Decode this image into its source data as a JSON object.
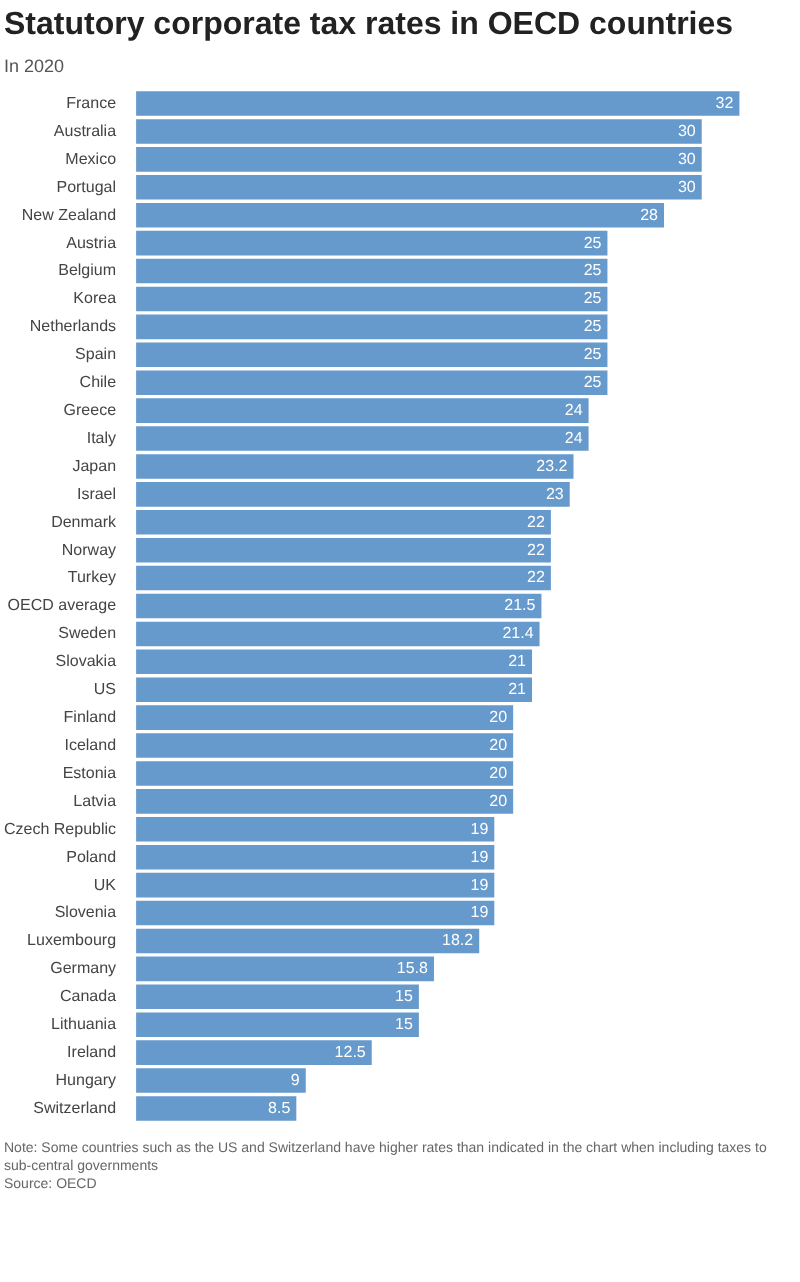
{
  "chart_data": {
    "type": "bar",
    "orientation": "horizontal",
    "title": "Statutory corporate tax rates in OECD countries",
    "subtitle": "In 2020",
    "categories": [
      "France",
      "Australia",
      "Mexico",
      "Portugal",
      "New Zealand",
      "Austria",
      "Belgium",
      "Korea",
      "Netherlands",
      "Spain",
      "Chile",
      "Greece",
      "Italy",
      "Japan",
      "Israel",
      "Denmark",
      "Norway",
      "Turkey",
      "OECD average",
      "Sweden",
      "Slovakia",
      "US",
      "Finland",
      "Iceland",
      "Estonia",
      "Latvia",
      "Czech Republic",
      "Poland",
      "UK",
      "Slovenia",
      "Luxembourg",
      "Germany",
      "Canada",
      "Lithuania",
      "Ireland",
      "Hungary",
      "Switzerland"
    ],
    "values": [
      32,
      30,
      30,
      30,
      28,
      25,
      25,
      25,
      25,
      25,
      25,
      24,
      24,
      23.2,
      23,
      22,
      22,
      22,
      21.5,
      21.4,
      21,
      21,
      20,
      20,
      20,
      20,
      19,
      19,
      19,
      19,
      18.2,
      15.8,
      15,
      15,
      12.5,
      9,
      8.5
    ],
    "color": "#6699cc",
    "data_labels": true,
    "legend": false,
    "annotations": [
      "Note: Some countries such as the US and Switzerland have higher rates than indicated in the chart when including taxes to sub-central governments",
      "Source: OECD"
    ]
  }
}
